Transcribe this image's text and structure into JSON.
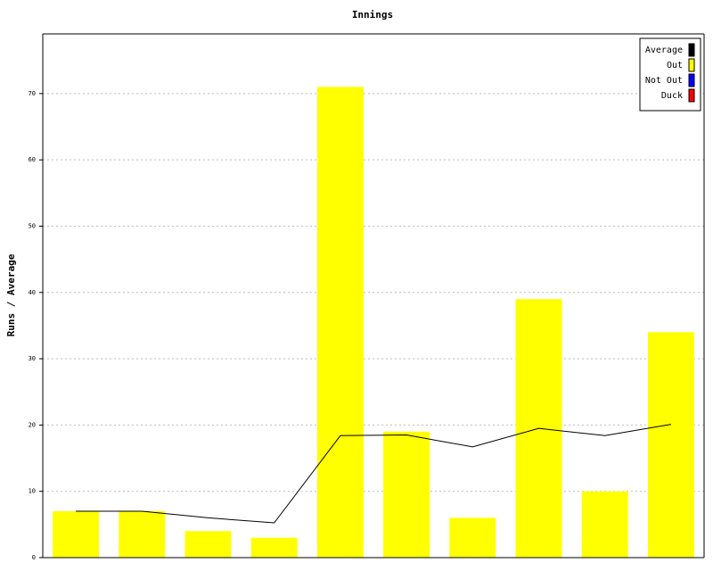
{
  "chart_data": {
    "type": "bar",
    "title": "Innings",
    "y_label": "Runs / Average",
    "categories": [
      null,
      null,
      null,
      null,
      null,
      null,
      null,
      null,
      null,
      null
    ],
    "series": [
      {
        "name": "Average",
        "color": "#000000",
        "type": "line",
        "values": [
          7,
          7,
          6,
          5.25,
          18.4,
          18.5,
          16.7,
          19.5,
          18.4,
          20.1
        ]
      },
      {
        "name": "Out",
        "color": "#ffff00",
        "type": "bar",
        "values": [
          7,
          7,
          4,
          3,
          71,
          19,
          6,
          39,
          10,
          34
        ]
      },
      {
        "name": "Not Out",
        "color": "#0000ff",
        "type": "bar",
        "values": [
          null,
          null,
          null,
          null,
          null,
          null,
          null,
          null,
          null,
          null
        ]
      },
      {
        "name": "Duck",
        "color": "#ff0000",
        "type": "bar",
        "values": [
          null,
          null,
          null,
          null,
          null,
          null,
          null,
          null,
          null,
          null
        ]
      }
    ],
    "ylim": [
      0,
      79
    ],
    "yticks": [
      0,
      10,
      20,
      30,
      40,
      50,
      60,
      70
    ],
    "grid": true,
    "legend": "top-right"
  }
}
